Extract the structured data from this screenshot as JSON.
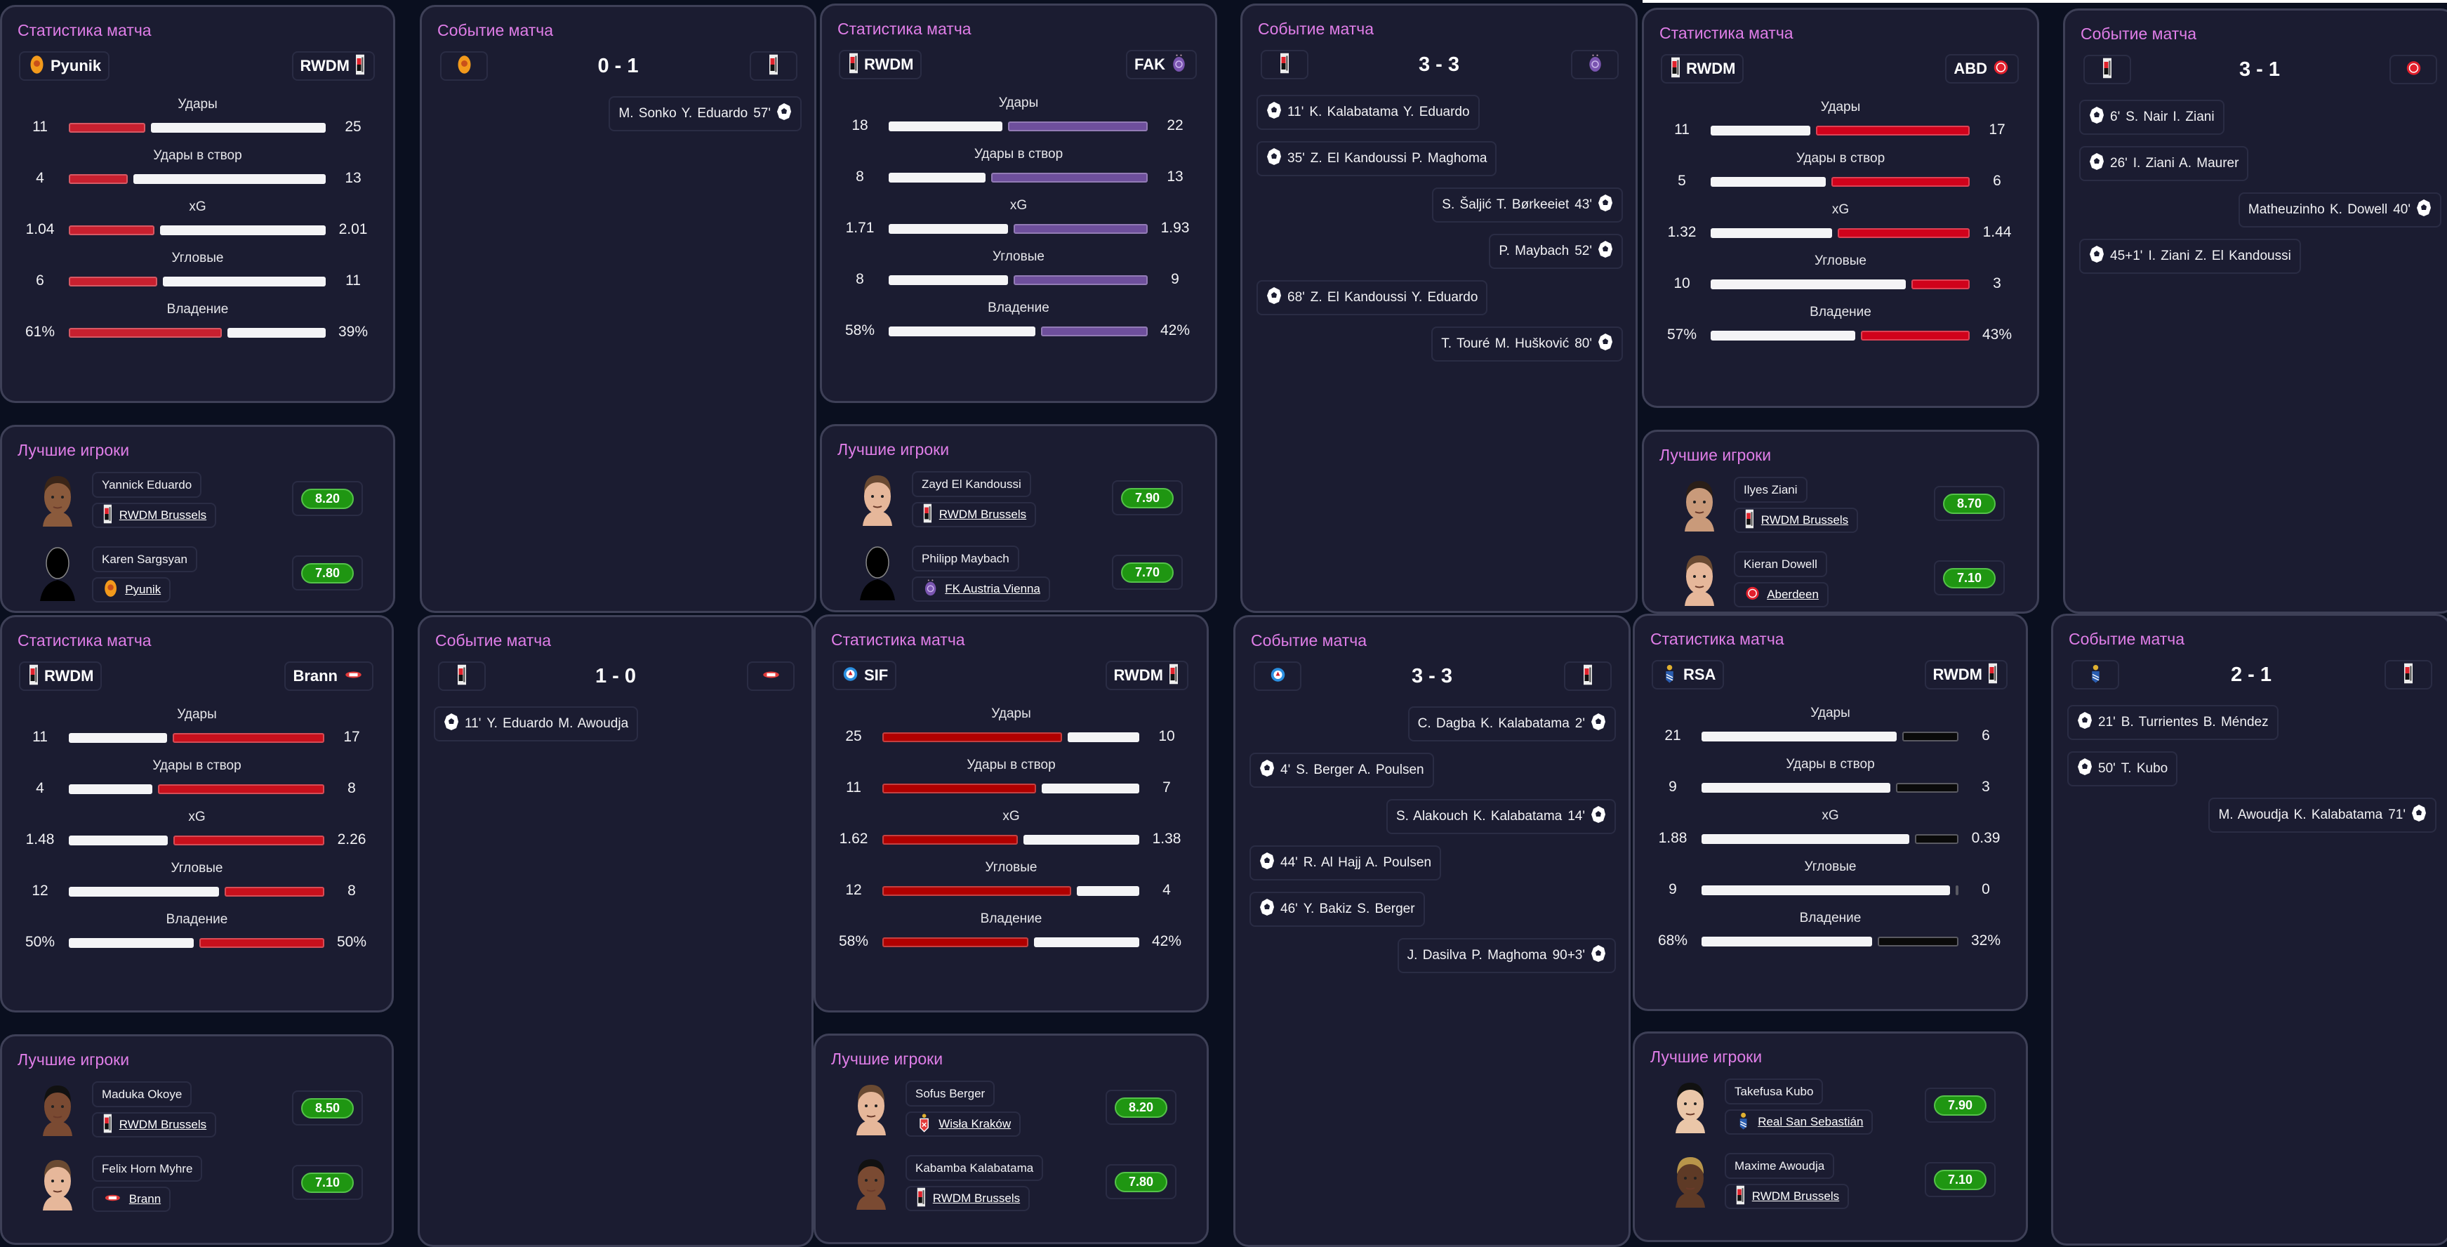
{
  "labels": {
    "stats_title": "Статистика матча",
    "events_title": "Событие матча",
    "players_title": "Лучшие игроки",
    "stat_names": [
      "Удары",
      "Удары в створ",
      "xG",
      "Угловые",
      "Владение"
    ]
  },
  "colors": {
    "title": "#e07ee8",
    "rating": "#1f9612",
    "bar_white": "#f4f4f6"
  },
  "matches": [
    {
      "home": {
        "abbr": "Pyunik",
        "logo": "pyunik",
        "bar_color": "#c8202f"
      },
      "away": {
        "abbr": "RWDM",
        "logo": "rwdm",
        "bar_color": "#f4f4f6"
      },
      "score": "0 - 1",
      "stats": [
        {
          "home": "11",
          "away": "25"
        },
        {
          "home": "4",
          "away": "13"
        },
        {
          "home": "1.04",
          "away": "2.01"
        },
        {
          "home": "6",
          "away": "11"
        },
        {
          "home": "61%",
          "away": "39%"
        }
      ],
      "events": [
        {
          "side": "away",
          "minute": "57'",
          "names": "M. Sonko Y. Eduardo"
        }
      ],
      "players": [
        {
          "name": "Yannick Eduardo",
          "club": "RWDM Brussels",
          "club_logo": "rwdm",
          "rating": "8.20",
          "photo": "face-dark-curly"
        },
        {
          "name": "Karen Sargsyan",
          "club": "Pyunik",
          "club_logo": "pyunik",
          "rating": "7.80",
          "photo": "silhouette"
        }
      ]
    },
    {
      "home": {
        "abbr": "RWDM",
        "logo": "rwdm",
        "bar_color": "#f4f4f6"
      },
      "away": {
        "abbr": "FAK",
        "logo": "fak",
        "bar_color": "#6e4f9c"
      },
      "score": "3 - 3",
      "stats": [
        {
          "home": "18",
          "away": "22"
        },
        {
          "home": "8",
          "away": "13"
        },
        {
          "home": "1.71",
          "away": "1.93"
        },
        {
          "home": "8",
          "away": "9"
        },
        {
          "home": "58%",
          "away": "42%"
        }
      ],
      "events": [
        {
          "side": "home",
          "minute": "11'",
          "names": "K. Kalabatama Y. Eduardo"
        },
        {
          "side": "home",
          "minute": "35'",
          "names": "Z. El Kandoussi P. Maghoma"
        },
        {
          "side": "away",
          "minute": "43'",
          "names": "S. Šaljić T. Børkeeiet"
        },
        {
          "side": "away",
          "minute": "52'",
          "names": "P. Maybach"
        },
        {
          "side": "home",
          "minute": "68'",
          "names": "Z. El Kandoussi Y. Eduardo"
        },
        {
          "side": "away",
          "minute": "80'",
          "names": "T. Touré M. Hušković"
        }
      ],
      "players": [
        {
          "name": "Zayd El Kandoussi",
          "club": "RWDM Brussels",
          "club_logo": "rwdm",
          "rating": "7.90",
          "photo": "face-light-brown"
        },
        {
          "name": "Philipp Maybach",
          "club": "FK Austria Vienna",
          "club_logo": "fak",
          "rating": "7.70",
          "photo": "silhouette"
        }
      ]
    },
    {
      "home": {
        "abbr": "RWDM",
        "logo": "rwdm",
        "bar_color": "#f4f4f6"
      },
      "away": {
        "abbr": "ABD",
        "logo": "abd",
        "bar_color": "#d0021b"
      },
      "score": "3 - 1",
      "stats": [
        {
          "home": "11",
          "away": "17"
        },
        {
          "home": "5",
          "away": "6"
        },
        {
          "home": "1.32",
          "away": "1.44"
        },
        {
          "home": "10",
          "away": "3"
        },
        {
          "home": "57%",
          "away": "43%"
        }
      ],
      "events": [
        {
          "side": "home",
          "minute": "6'",
          "names": "S. Nair I. Ziani"
        },
        {
          "side": "home",
          "minute": "26'",
          "names": "I. Ziani A. Maurer"
        },
        {
          "side": "away",
          "minute": "40'",
          "names": "Matheuzinho K. Dowell"
        },
        {
          "side": "home",
          "minute": "45+1'",
          "names": "I. Ziani Z. El Kandoussi"
        }
      ],
      "players": [
        {
          "name": "Ilyes Ziani",
          "club": "RWDM Brussels",
          "club_logo": "rwdm",
          "rating": "8.70",
          "photo": "face-medium-beard"
        },
        {
          "name": "Kieran Dowell",
          "club": "Aberdeen",
          "club_logo": "abd",
          "rating": "7.10",
          "photo": "face-light-brown"
        }
      ]
    },
    {
      "home": {
        "abbr": "RWDM",
        "logo": "rwdm",
        "bar_color": "#f4f4f6"
      },
      "away": {
        "abbr": "Brann",
        "logo": "brann",
        "bar_color": "#c8101c"
      },
      "score": "1 - 0",
      "stats": [
        {
          "home": "11",
          "away": "17"
        },
        {
          "home": "4",
          "away": "8"
        },
        {
          "home": "1.48",
          "away": "2.26"
        },
        {
          "home": "12",
          "away": "8"
        },
        {
          "home": "50%",
          "away": "50%"
        }
      ],
      "events": [
        {
          "side": "home",
          "minute": "11'",
          "names": "Y. Eduardo M. Awoudja"
        }
      ],
      "players": [
        {
          "name": "Maduka Okoye",
          "club": "RWDM Brussels",
          "club_logo": "rwdm",
          "rating": "8.50",
          "photo": "face-dark"
        },
        {
          "name": "Felix Horn Myhre",
          "club": "Brann",
          "club_logo": "brann",
          "rating": "7.10",
          "photo": "face-light-brown"
        }
      ]
    },
    {
      "home": {
        "abbr": "SIF",
        "logo": "sif",
        "bar_color": "#b00000"
      },
      "away": {
        "abbr": "RWDM",
        "logo": "rwdm",
        "bar_color": "#f4f4f6"
      },
      "score": "3 - 3",
      "stats": [
        {
          "home": "25",
          "away": "10"
        },
        {
          "home": "11",
          "away": "7"
        },
        {
          "home": "1.62",
          "away": "1.38"
        },
        {
          "home": "12",
          "away": "4"
        },
        {
          "home": "58%",
          "away": "42%"
        }
      ],
      "events": [
        {
          "side": "away",
          "minute": "2'",
          "names": "C. Dagba K. Kalabatama"
        },
        {
          "side": "home",
          "minute": "4'",
          "names": "S. Berger A. Poulsen"
        },
        {
          "side": "away",
          "minute": "14'",
          "names": "S. Alakouch K. Kalabatama"
        },
        {
          "side": "home",
          "minute": "44'",
          "names": "R. Al Hajj A. Poulsen"
        },
        {
          "side": "home",
          "minute": "46'",
          "names": "Y. Bakiz S. Berger"
        },
        {
          "side": "away",
          "minute": "90+3'",
          "names": "J. Dasilva P. Maghoma"
        }
      ],
      "players": [
        {
          "name": "Sofus Berger",
          "club": "Wisła Kraków",
          "club_logo": "wisla",
          "rating": "8.20",
          "photo": "face-light-brown"
        },
        {
          "name": "Kabamba Kalabatama",
          "club": "RWDM Brussels",
          "club_logo": "rwdm",
          "rating": "7.80",
          "photo": "face-dark"
        }
      ]
    },
    {
      "home": {
        "abbr": "RSA",
        "logo": "rsa",
        "bar_color": "#f4f4f6"
      },
      "away": {
        "abbr": "RWDM",
        "logo": "rwdm",
        "bar_color": "#0a0a0a"
      },
      "score": "2 - 1",
      "stats": [
        {
          "home": "21",
          "away": "6"
        },
        {
          "home": "9",
          "away": "3"
        },
        {
          "home": "1.88",
          "away": "0.39"
        },
        {
          "home": "9",
          "away": "0"
        },
        {
          "home": "68%",
          "away": "32%"
        }
      ],
      "events": [
        {
          "side": "home",
          "minute": "21'",
          "names": "B. Turrientes B. Méndez"
        },
        {
          "side": "home",
          "minute": "50'",
          "names": "T. Kubo"
        },
        {
          "side": "away",
          "minute": "71'",
          "names": "M. Awoudja K. Kalabatama"
        }
      ],
      "players": [
        {
          "name": "Takefusa Kubo",
          "club": "Real San Sebastián",
          "club_logo": "rsa",
          "rating": "7.90",
          "photo": "face-light-black"
        },
        {
          "name": "Maxime Awoudja",
          "club": "RWDM Brussels",
          "club_logo": "rwdm",
          "rating": "7.10",
          "photo": "face-dark-dreads"
        }
      ]
    }
  ]
}
